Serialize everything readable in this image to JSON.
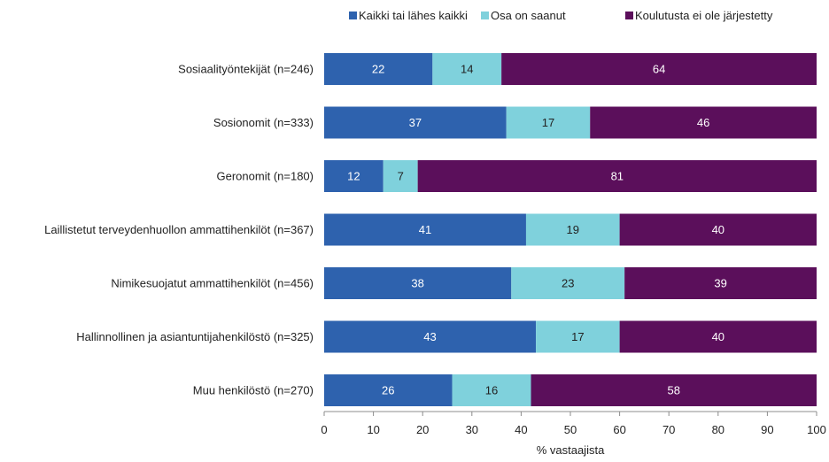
{
  "chart_data": {
    "type": "bar",
    "orientation": "horizontal",
    "stacked": true,
    "categories": [
      "Sosiaalityöntekijät (n=246)",
      "Sosionomit (n=333)",
      "Geronomit (n=180)",
      "Laillistetut terveydenhuollon ammattihenkilöt (n=367)",
      "Nimikesuojatut ammattihenkilöt (n=456)",
      "Hallinnollinen ja asiantuntijahenkilöstö (n=325)",
      "Muu henkilöstö (n=270)"
    ],
    "series": [
      {
        "name": "Kaikki tai lähes kaikki",
        "color": "#2e62ae",
        "label_color": "#ffffff",
        "values": [
          22,
          37,
          12,
          41,
          38,
          43,
          26
        ]
      },
      {
        "name": "Osa on saanut",
        "color": "#7fd1dc",
        "label_color": "#222222",
        "values": [
          14,
          17,
          7,
          19,
          23,
          17,
          16
        ]
      },
      {
        "name": "Koulutusta ei ole järjestetty",
        "color": "#5b0f5b",
        "label_color": "#ffffff",
        "values": [
          64,
          46,
          81,
          40,
          39,
          40,
          58
        ]
      }
    ],
    "xlabel": "% vastaajista",
    "ylabel": "",
    "xlim": [
      0,
      100
    ],
    "xticks": [
      "0",
      "10",
      "20",
      "30",
      "40",
      "50",
      "60",
      "70",
      "80",
      "90",
      "100"
    ],
    "grid": false,
    "legend_position": "top"
  }
}
